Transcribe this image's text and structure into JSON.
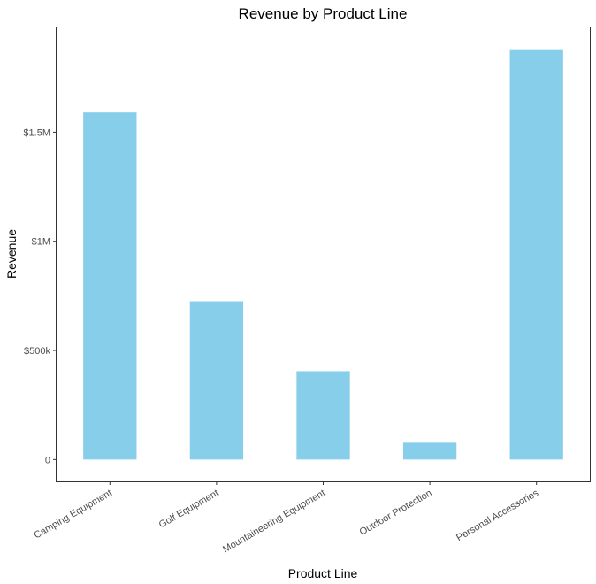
{
  "chart_data": {
    "type": "bar",
    "title": "Revenue by Product Line",
    "xlabel": "Product Line",
    "ylabel": "Revenue",
    "categories": [
      "Camping Equipment",
      "Golf Equipment",
      "Mountaineering Equipment",
      "Outdoor Protection",
      "Personal Accessories"
    ],
    "values": [
      1590000,
      725000,
      405000,
      77000,
      1880000
    ],
    "ylim": [
      -100000,
      1980000
    ],
    "yticks": [
      0,
      500000,
      1000000,
      1500000
    ],
    "ytick_labels": [
      "0",
      "$500k",
      "$1M",
      "$1.5M"
    ],
    "grid": false,
    "legend": "none",
    "bar_color": "#87ceeb",
    "frame_color": "#333333"
  }
}
